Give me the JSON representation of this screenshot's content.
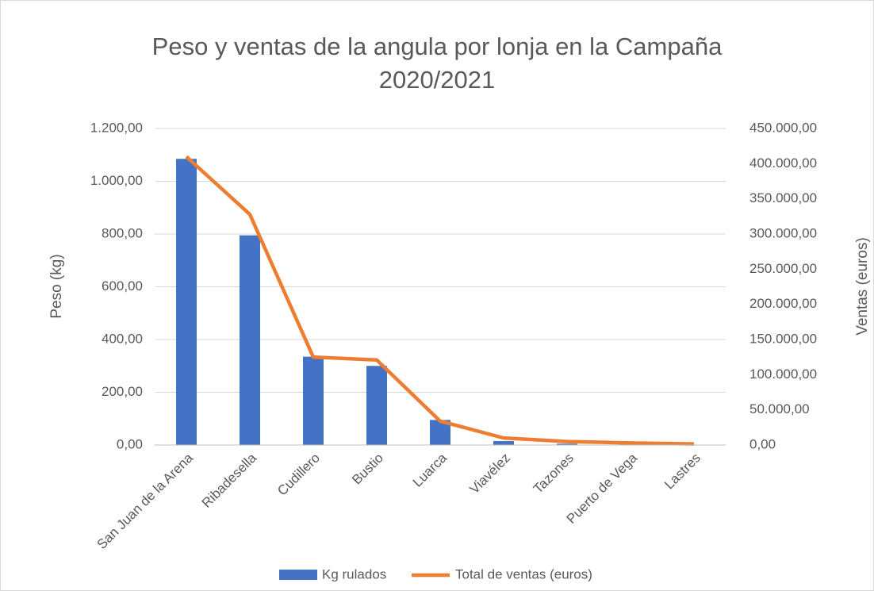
{
  "chart_data": {
    "type": "bar_line",
    "title": "Peso y ventas de la angula por lonja en la Campaña 2020/2021",
    "ylabel": "Peso (kg)",
    "y2label": "Ventas (euros)",
    "categories": [
      "San Juan de la Arena",
      "Ribadesella",
      "Cudillero",
      "Bustio",
      "Luarca",
      "Viavélez",
      "Tazones",
      "Puerto de Vega",
      "Lastres"
    ],
    "series": [
      {
        "name": "Kg rulados",
        "type": "bar",
        "color": "#4472c4",
        "values": [
          1085,
          795,
          335,
          300,
          95,
          15,
          5,
          3,
          1
        ]
      },
      {
        "name": "Total de ventas (euros)",
        "type": "line",
        "axis": "y2",
        "color": "#ed7d31",
        "values": [
          410000,
          328000,
          125000,
          121000,
          34000,
          10000,
          5000,
          3000,
          1500
        ]
      }
    ],
    "ylim": [
      0,
      1200
    ],
    "yticks": [
      {
        "value": 0,
        "label": "0,00"
      },
      {
        "value": 200,
        "label": "200,00"
      },
      {
        "value": 400,
        "label": "400,00"
      },
      {
        "value": 600,
        "label": "600,00"
      },
      {
        "value": 800,
        "label": "800,00"
      },
      {
        "value": 1000,
        "label": "1.000,00"
      },
      {
        "value": 1200,
        "label": "1.200,00"
      }
    ],
    "y2lim": [
      0,
      450000
    ],
    "y2ticks": [
      {
        "value": 0,
        "label": "0,00"
      },
      {
        "value": 50000,
        "label": "50.000,00"
      },
      {
        "value": 100000,
        "label": "100.000,00"
      },
      {
        "value": 150000,
        "label": "150.000,00"
      },
      {
        "value": 200000,
        "label": "200.000,00"
      },
      {
        "value": 250000,
        "label": "250.000,00"
      },
      {
        "value": 300000,
        "label": "300.000,00"
      },
      {
        "value": 350000,
        "label": "350.000,00"
      },
      {
        "value": 400000,
        "label": "400.000,00"
      },
      {
        "value": 450000,
        "label": "450.000,00"
      }
    ],
    "grid": true,
    "legend": "bottom"
  }
}
